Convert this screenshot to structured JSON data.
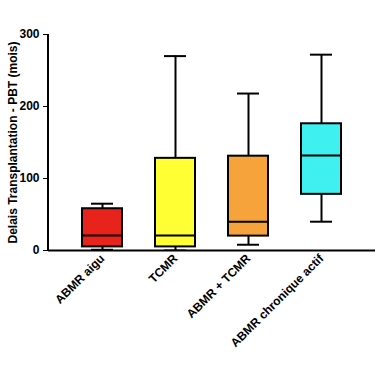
{
  "chart_data": {
    "type": "box",
    "y_label": "Delais Transplantation - PBT (mois)",
    "categories": [
      "ABMR aigu",
      "TCMR",
      "ABMR + TCMR",
      "ABMR chronique actif"
    ],
    "min": [
      1,
      0,
      8,
      40
    ],
    "q1": [
      5,
      5,
      20,
      78
    ],
    "median": [
      21,
      21,
      40,
      132
    ],
    "q3": [
      58,
      128,
      131,
      176
    ],
    "max": [
      65,
      270,
      218,
      272
    ],
    "colors": [
      "#e8231c",
      "#ffff33",
      "#f7a33b",
      "#3ff0f0"
    ],
    "ylim": [
      0,
      300
    ],
    "yticks": [
      0,
      100,
      200,
      300
    ],
    "grid": false
  }
}
